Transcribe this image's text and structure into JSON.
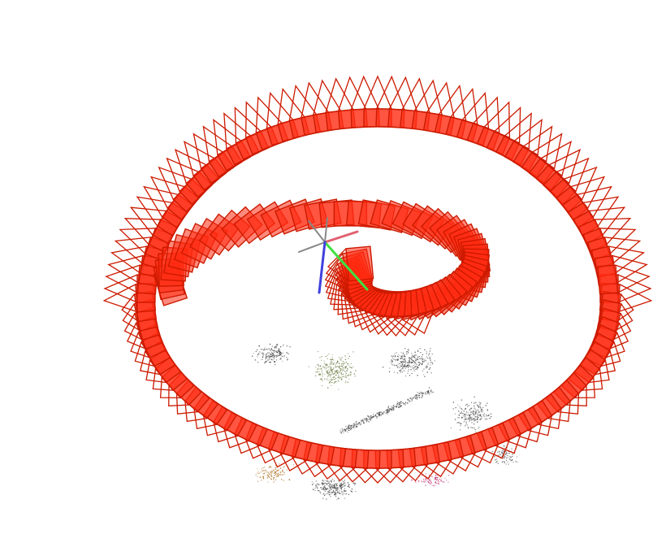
{
  "scene": {
    "description_type": "3d-camera-trajectory-visualization",
    "colors": {
      "background": "#ffffff",
      "camera_edge": "#cc1a00",
      "camera_face": "#ff2a10",
      "axis_x": "#e06070",
      "axis_y": "#40e040",
      "axis_z": "#4040e0",
      "axis_neg": "#888888",
      "cloud_dark": "#444444",
      "cloud_green": "#6a7a40",
      "cloud_brown": "#b07a30",
      "cloud_magenta": "#c03070"
    },
    "camera_count_outer": 120,
    "camera_count_inner": 70,
    "point_cloud_clusters": 9
  }
}
